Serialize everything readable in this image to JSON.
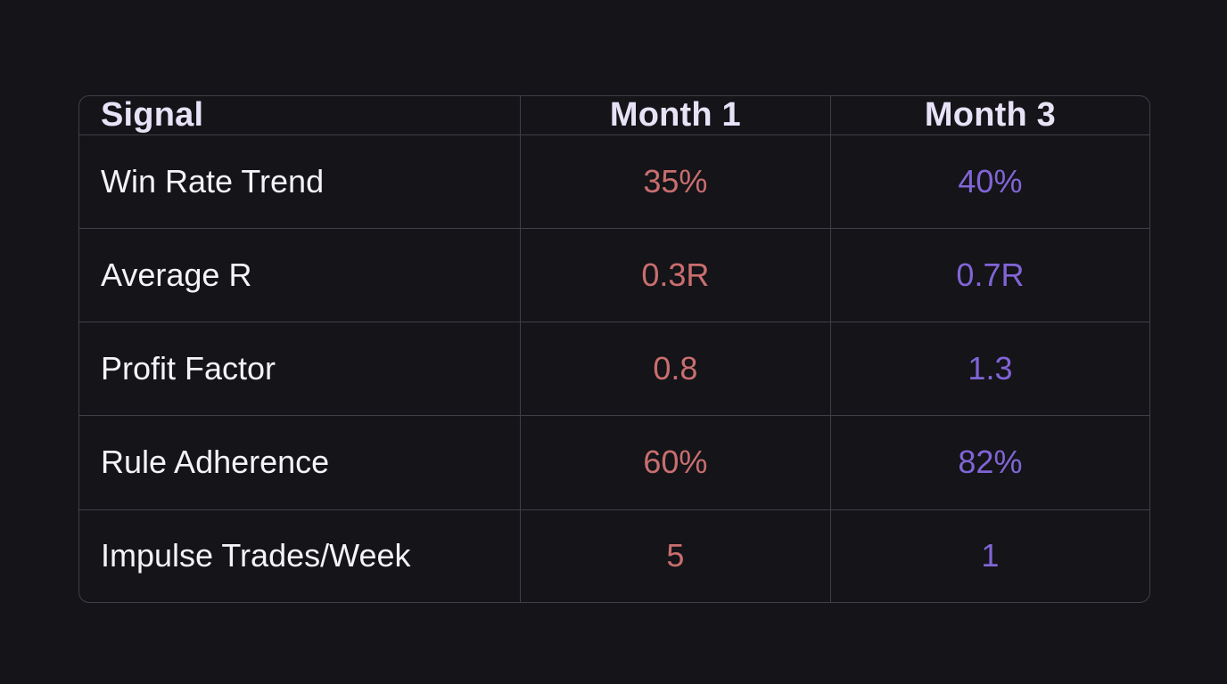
{
  "colors": {
    "bg": "#141419",
    "table_border": "#3f3f47",
    "header_text": "#e8e2f7",
    "label_text": "#f4f3f6",
    "month1_value": "#c96e6e",
    "month3_value": "#8165d6"
  },
  "chart_data": {
    "type": "table",
    "title": "",
    "columns": [
      "Signal",
      "Month 1",
      "Month 3"
    ],
    "rows": [
      [
        "Win Rate Trend",
        "35%",
        "40%"
      ],
      [
        "Average R",
        "0.3R",
        "0.7R"
      ],
      [
        "Profit Factor",
        "0.8",
        "1.3"
      ],
      [
        "Rule Adherence",
        "60%",
        "82%"
      ],
      [
        "Impulse Trades/Week",
        "5",
        "1"
      ]
    ],
    "value_semantics": {
      "month1_color_meaning": "negative/weak (red)",
      "month3_color_meaning": "positive/improved (purple)"
    }
  }
}
